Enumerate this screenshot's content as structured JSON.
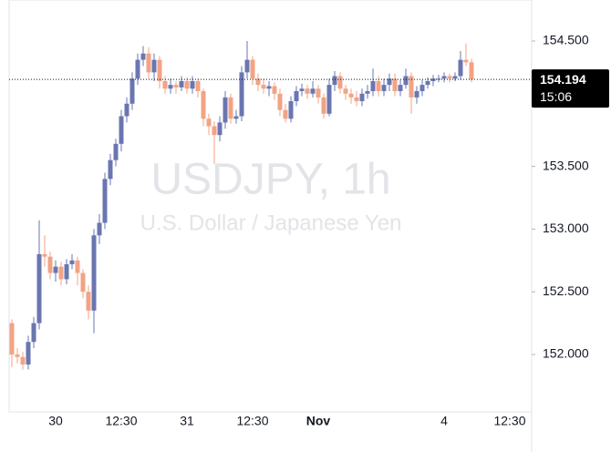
{
  "chart_data": {
    "type": "candlestick",
    "title": "USDJPY, 1h",
    "subtitle": "U.S. Dollar / Japanese Yen",
    "categories": [
      null,
      null,
      null,
      null,
      null,
      null,
      null,
      null,
      "30",
      null,
      null,
      null,
      null,
      null,
      null,
      null,
      null,
      null,
      null,
      null,
      "12:30",
      null,
      null,
      null,
      null,
      null,
      null,
      null,
      null,
      null,
      null,
      null,
      "31",
      null,
      null,
      null,
      null,
      null,
      null,
      null,
      null,
      null,
      null,
      null,
      "12:30",
      null,
      null,
      null,
      null,
      null,
      null,
      null,
      null,
      null,
      null,
      null,
      "Nov",
      null,
      null,
      null,
      null,
      null,
      null,
      null,
      null,
      null,
      null,
      null,
      null,
      null,
      null,
      null,
      null,
      null,
      null,
      null,
      null,
      null,
      null,
      "4",
      null,
      null,
      null,
      null,
      null,
      null,
      null,
      null,
      null,
      null,
      null,
      "12:30"
    ],
    "open": [
      152.25,
      152.0,
      151.98,
      151.92,
      152.1,
      152.25,
      152.8,
      152.78,
      152.65,
      152.7,
      152.6,
      152.72,
      152.75,
      152.65,
      152.5,
      152.35,
      152.95,
      153.05,
      153.4,
      153.55,
      153.68,
      153.9,
      154.0,
      154.2,
      154.35,
      154.4,
      154.25,
      154.35,
      154.18,
      154.12,
      154.15,
      154.13,
      154.18,
      154.12,
      154.18,
      154.1,
      153.88,
      153.82,
      153.75,
      153.85,
      154.05,
      153.88,
      153.9,
      154.25,
      154.35,
      154.2,
      154.15,
      154.12,
      154.14,
      154.08,
      153.95,
      153.88,
      154.02,
      154.1,
      154.12,
      154.08,
      154.12,
      154.05,
      153.92,
      154.15,
      154.22,
      154.12,
      154.08,
      154.05,
      154.02,
      154.08,
      154.1,
      154.18,
      154.1,
      154.15,
      154.2,
      154.1,
      154.15,
      154.22,
      154.05,
      154.1,
      154.15,
      154.18,
      154.2,
      154.2,
      154.22,
      154.2,
      154.22,
      154.35,
      154.33,
      null,
      null,
      null,
      null,
      null,
      null,
      null
    ],
    "high": [
      152.28,
      152.05,
      152.02,
      152.15,
      152.3,
      153.07,
      152.95,
      152.82,
      152.75,
      152.74,
      152.76,
      152.8,
      152.78,
      152.68,
      152.55,
      153.0,
      153.12,
      153.45,
      153.6,
      153.72,
      153.95,
      154.05,
      154.25,
      154.4,
      154.46,
      154.45,
      154.4,
      154.38,
      154.22,
      154.2,
      154.18,
      154.22,
      154.21,
      154.22,
      154.2,
      154.12,
      153.92,
      153.86,
      153.9,
      154.1,
      154.08,
      153.95,
      154.3,
      154.5,
      154.38,
      154.24,
      154.2,
      154.18,
      154.17,
      154.12,
      154.0,
      154.06,
      154.14,
      154.16,
      154.15,
      154.18,
      154.15,
      154.08,
      154.2,
      154.26,
      154.25,
      154.15,
      154.12,
      154.1,
      154.12,
      154.15,
      154.28,
      154.22,
      154.2,
      154.24,
      154.24,
      154.19,
      154.28,
      154.25,
      154.14,
      154.19,
      154.21,
      154.23,
      154.23,
      154.25,
      154.24,
      154.25,
      154.42,
      154.48,
      154.36,
      null,
      null,
      null,
      null,
      null,
      null,
      null
    ],
    "low": [
      151.9,
      151.93,
      151.88,
      151.88,
      152.05,
      152.2,
      152.7,
      152.6,
      152.58,
      152.55,
      152.56,
      152.68,
      152.55,
      152.45,
      152.28,
      152.17,
      152.88,
      153.0,
      153.35,
      153.5,
      153.62,
      153.85,
      153.95,
      154.15,
      154.3,
      154.2,
      154.18,
      154.12,
      154.08,
      154.08,
      154.08,
      154.1,
      154.08,
      154.08,
      154.05,
      153.82,
      153.75,
      153.52,
      153.7,
      153.8,
      153.84,
      153.84,
      153.86,
      154.2,
      154.15,
      154.1,
      154.08,
      154.06,
      154.03,
      153.9,
      153.85,
      153.85,
      153.98,
      154.06,
      154.04,
      154.05,
      154.0,
      153.88,
      153.9,
      154.1,
      154.08,
      154.03,
      154.0,
      153.98,
      153.98,
      154.04,
      154.06,
      154.06,
      154.06,
      154.1,
      154.06,
      154.06,
      154.12,
      153.92,
      154.0,
      154.06,
      154.12,
      154.14,
      154.17,
      154.17,
      154.17,
      154.18,
      154.19,
      154.3,
      154.17,
      null,
      null,
      null,
      null,
      null,
      null,
      null
    ],
    "close": [
      152.0,
      151.98,
      151.92,
      152.1,
      152.25,
      152.8,
      152.78,
      152.65,
      152.7,
      152.6,
      152.72,
      152.75,
      152.65,
      152.5,
      152.35,
      152.95,
      153.05,
      153.4,
      153.55,
      153.68,
      153.9,
      154.0,
      154.2,
      154.35,
      154.4,
      154.25,
      154.35,
      154.18,
      154.12,
      154.15,
      154.13,
      154.18,
      154.12,
      154.18,
      154.1,
      153.88,
      153.82,
      153.75,
      153.85,
      154.05,
      153.88,
      153.9,
      154.25,
      154.35,
      154.2,
      154.15,
      154.12,
      154.14,
      154.08,
      153.95,
      153.88,
      154.02,
      154.1,
      154.12,
      154.08,
      154.12,
      154.05,
      153.92,
      154.15,
      154.22,
      154.12,
      154.08,
      154.05,
      154.02,
      154.08,
      154.1,
      154.18,
      154.1,
      154.15,
      154.2,
      154.1,
      154.15,
      154.22,
      154.05,
      154.1,
      154.15,
      154.18,
      154.2,
      154.2,
      154.22,
      154.2,
      154.22,
      154.35,
      154.33,
      154.194,
      null,
      null,
      null,
      null,
      null,
      null,
      null
    ],
    "up_color": "#6a76b0",
    "down_color": "#f2a384",
    "ylim": [
      151.542,
      154.827
    ],
    "yticks": [
      {
        "value": 152,
        "label": "152.000"
      },
      {
        "value": 152.5,
        "label": "152.500"
      },
      {
        "value": 153,
        "label": "153.000"
      },
      {
        "value": 153.5,
        "label": "153.500"
      },
      {
        "value": 154.5,
        "label": "154.500"
      }
    ],
    "last_price": 154.194,
    "countdown": "15:06"
  }
}
